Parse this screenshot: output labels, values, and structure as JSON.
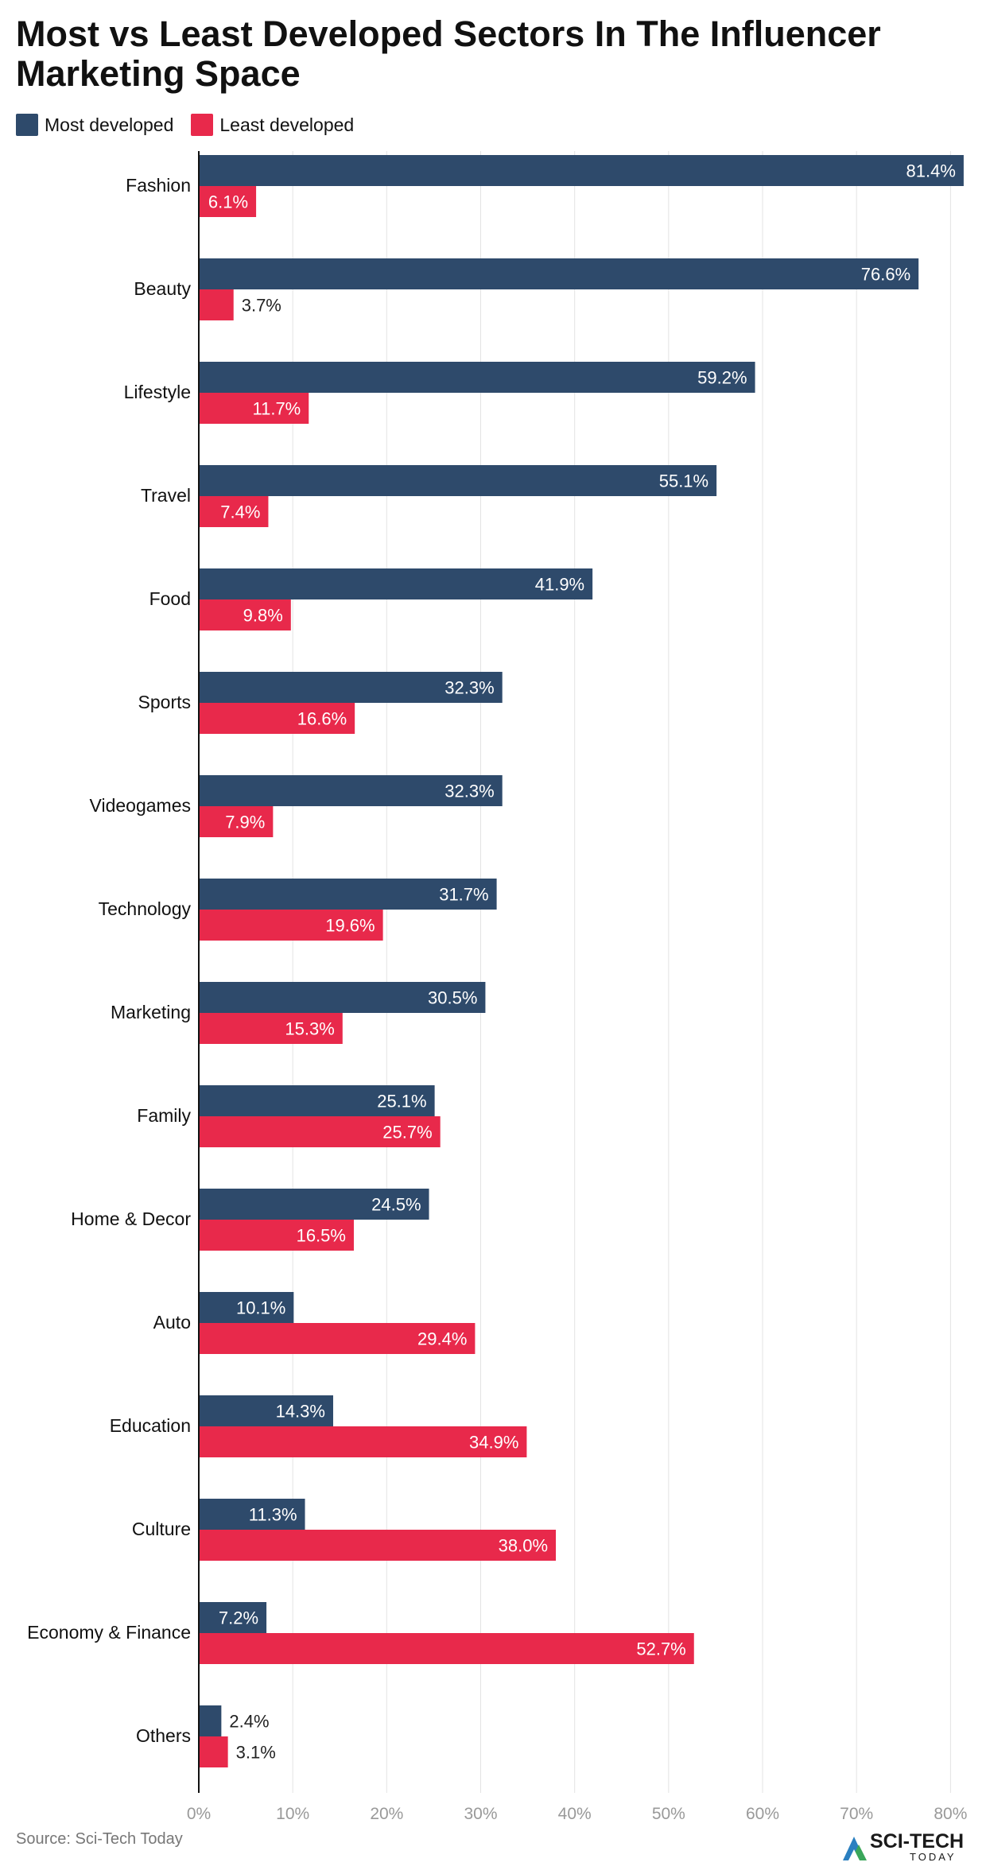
{
  "title": "Most vs Least Developed Sectors In The Influencer Marketing Space",
  "legend": [
    {
      "label": "Most developed",
      "color": "#2e4a6b"
    },
    {
      "label": "Least developed",
      "color": "#e8294b"
    }
  ],
  "source": "Source: Sci-Tech Today",
  "logo": {
    "main": "SCI-TECH",
    "sub": "TODAY",
    "icon": "sci-tech-triangle-logo"
  },
  "colors": {
    "most": "#2e4a6b",
    "least": "#e8294b",
    "grid": "#e3e3e3",
    "tick": "#999999"
  },
  "chart_data": {
    "type": "bar",
    "orientation": "horizontal",
    "title": "Most vs Least Developed Sectors In The Influencer Marketing Space",
    "categories": [
      "Fashion",
      "Beauty",
      "Lifestyle",
      "Travel",
      "Food",
      "Sports",
      "Videogames",
      "Technology",
      "Marketing",
      "Family",
      "Home & Decor",
      "Auto",
      "Education",
      "Culture",
      "Economy & Finance",
      "Others"
    ],
    "series": [
      {
        "name": "Most developed",
        "color": "#2e4a6b",
        "values": [
          81.4,
          76.6,
          59.2,
          55.1,
          41.9,
          32.3,
          32.3,
          31.7,
          30.5,
          25.1,
          24.5,
          10.1,
          14.3,
          11.3,
          7.2,
          2.4
        ],
        "labels": [
          "81.4%",
          "76.6%",
          "59.2%",
          "55.1%",
          "41.9%",
          "32.3%",
          "32.3%",
          "31.7%",
          "30.5%",
          "25.1%",
          "24.5%",
          "10.1%",
          "14.3%",
          "11.3%",
          "7.2%",
          "2.4%"
        ]
      },
      {
        "name": "Least developed",
        "color": "#e8294b",
        "values": [
          6.1,
          3.7,
          11.7,
          7.4,
          9.8,
          16.6,
          7.9,
          19.6,
          15.3,
          25.7,
          16.5,
          29.4,
          34.9,
          38.0,
          52.7,
          3.1
        ],
        "labels": [
          "6.1%",
          "3.7%",
          "11.7%",
          "7.4%",
          "9.8%",
          "16.6%",
          "7.9%",
          "19.6%",
          "15.3%",
          "25.7%",
          "16.5%",
          "29.4%",
          "34.9%",
          "38.0%",
          "52.7%",
          "3.1%"
        ]
      }
    ],
    "xlim": [
      0,
      82
    ],
    "xticks": [
      0,
      10,
      20,
      30,
      40,
      50,
      60,
      70,
      80
    ],
    "xtick_labels": [
      "0%",
      "10%",
      "20%",
      "30%",
      "40%",
      "50%",
      "60%",
      "70%",
      "80%"
    ],
    "grid": true,
    "legend_position": "top-left"
  }
}
